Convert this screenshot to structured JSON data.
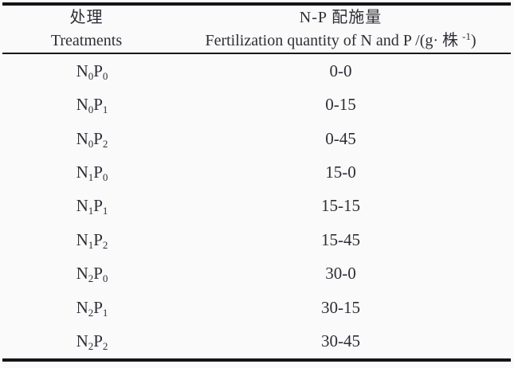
{
  "page": {
    "background_color": "#fafafa",
    "text_color": "#2d2d35",
    "rule_color": "#141418"
  },
  "table": {
    "header": {
      "treatments_zh": "处理",
      "treatments_en": "Treatments",
      "quantity_zh": "N-P 配施量",
      "quantity_en_prefix": "Fertilization quantity of N and P /(g· 株",
      "quantity_en_sup": "-1",
      "quantity_en_suffix": ")"
    },
    "rows": [
      {
        "n": "N",
        "n_sub": "0",
        "p": "P",
        "p_sub": "0",
        "quantity": "0-0"
      },
      {
        "n": "N",
        "n_sub": "0",
        "p": "P",
        "p_sub": "1",
        "quantity": "0-15"
      },
      {
        "n": "N",
        "n_sub": "0",
        "p": "P",
        "p_sub": "2",
        "quantity": "0-45"
      },
      {
        "n": "N",
        "n_sub": "1",
        "p": "P",
        "p_sub": "0",
        "quantity": "15-0"
      },
      {
        "n": "N",
        "n_sub": "1",
        "p": "P",
        "p_sub": "1",
        "quantity": "15-15"
      },
      {
        "n": "N",
        "n_sub": "1",
        "p": "P",
        "p_sub": "2",
        "quantity": "15-45"
      },
      {
        "n": "N",
        "n_sub": "2",
        "p": "P",
        "p_sub": "0",
        "quantity": "30-0"
      },
      {
        "n": "N",
        "n_sub": "2",
        "p": "P",
        "p_sub": "1",
        "quantity": "30-15"
      },
      {
        "n": "N",
        "n_sub": "2",
        "p": "P",
        "p_sub": "2",
        "quantity": "30-45"
      }
    ]
  }
}
